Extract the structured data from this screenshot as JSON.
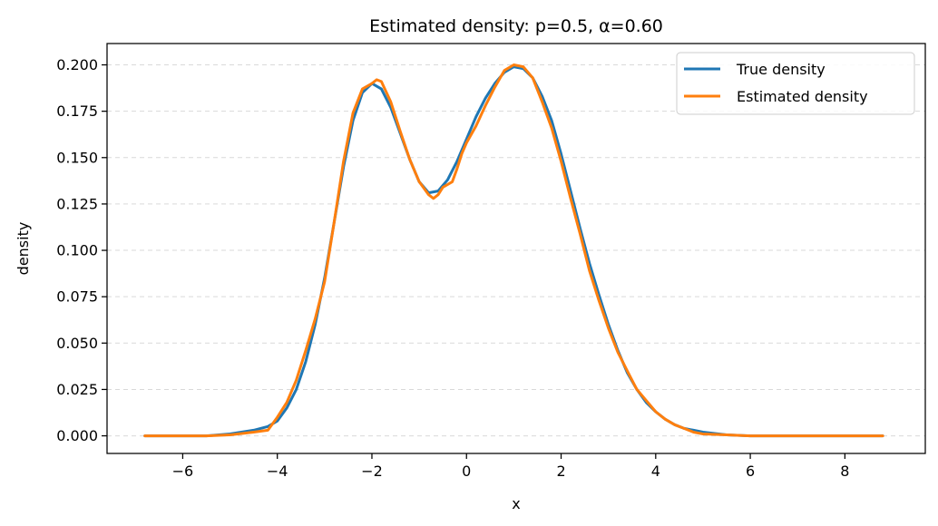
{
  "chart_data": {
    "type": "line",
    "title": "Estimated density: p=0.5, α=0.60",
    "xlabel": "x",
    "ylabel": "density",
    "xlim": [
      -7.6,
      9.7
    ],
    "ylim": [
      -0.0095,
      0.2115
    ],
    "xticks": [
      -6,
      -4,
      -2,
      0,
      2,
      4,
      6,
      8
    ],
    "xtick_labels": [
      "−6",
      "−4",
      "−2",
      "0",
      "2",
      "4",
      "6",
      "8"
    ],
    "yticks": [
      0.0,
      0.025,
      0.05,
      0.075,
      0.1,
      0.125,
      0.15,
      0.175,
      0.2
    ],
    "ytick_labels": [
      "0.000",
      "0.025",
      "0.050",
      "0.075",
      "0.100",
      "0.125",
      "0.150",
      "0.175",
      "0.200"
    ],
    "grid": "y-dashed",
    "legend_position": "top-right",
    "series": [
      {
        "name": "True density",
        "color": "#1f77b4",
        "x": [
          -6.8,
          -6.0,
          -5.5,
          -5.0,
          -4.5,
          -4.2,
          -4.0,
          -3.8,
          -3.6,
          -3.4,
          -3.2,
          -3.0,
          -2.8,
          -2.6,
          -2.4,
          -2.2,
          -2.0,
          -1.8,
          -1.6,
          -1.4,
          -1.2,
          -1.0,
          -0.8,
          -0.6,
          -0.4,
          -0.2,
          0.0,
          0.2,
          0.4,
          0.6,
          0.8,
          1.0,
          1.2,
          1.4,
          1.6,
          1.8,
          2.0,
          2.2,
          2.4,
          2.6,
          2.8,
          3.0,
          3.2,
          3.4,
          3.6,
          3.8,
          4.0,
          4.2,
          4.4,
          4.6,
          4.8,
          5.0,
          5.5,
          6.0,
          7.0,
          8.0,
          8.8
        ],
        "y": [
          0.0,
          0.0,
          0.0,
          0.001,
          0.003,
          0.005,
          0.008,
          0.015,
          0.025,
          0.04,
          0.06,
          0.085,
          0.115,
          0.145,
          0.17,
          0.185,
          0.19,
          0.187,
          0.177,
          0.163,
          0.149,
          0.137,
          0.131,
          0.132,
          0.138,
          0.148,
          0.16,
          0.172,
          0.182,
          0.19,
          0.196,
          0.199,
          0.198,
          0.193,
          0.183,
          0.17,
          0.152,
          0.132,
          0.112,
          0.093,
          0.076,
          0.06,
          0.046,
          0.034,
          0.025,
          0.018,
          0.013,
          0.009,
          0.006,
          0.004,
          0.003,
          0.002,
          0.0005,
          0.0,
          0.0,
          0.0,
          0.0
        ]
      },
      {
        "name": "Estimated density",
        "color": "#ff7f0e",
        "x": [
          -6.8,
          -6.0,
          -5.5,
          -5.0,
          -4.5,
          -4.2,
          -4.0,
          -3.8,
          -3.6,
          -3.4,
          -3.2,
          -3.0,
          -2.8,
          -2.6,
          -2.4,
          -2.2,
          -2.0,
          -1.9,
          -1.8,
          -1.6,
          -1.4,
          -1.2,
          -1.0,
          -0.8,
          -0.7,
          -0.6,
          -0.5,
          -0.3,
          -0.2,
          -0.1,
          0.0,
          0.2,
          0.4,
          0.6,
          0.8,
          1.0,
          1.2,
          1.4,
          1.6,
          1.8,
          2.0,
          2.2,
          2.4,
          2.6,
          2.8,
          3.0,
          3.2,
          3.4,
          3.6,
          3.8,
          4.0,
          4.2,
          4.4,
          4.6,
          4.8,
          5.0,
          5.5,
          6.0,
          7.0,
          8.0,
          8.8
        ],
        "y": [
          0.0,
          0.0,
          0.0,
          0.0005,
          0.002,
          0.003,
          0.01,
          0.018,
          0.03,
          0.046,
          0.063,
          0.083,
          0.115,
          0.148,
          0.174,
          0.187,
          0.19,
          0.192,
          0.191,
          0.18,
          0.164,
          0.149,
          0.137,
          0.13,
          0.128,
          0.13,
          0.134,
          0.137,
          0.144,
          0.152,
          0.158,
          0.167,
          0.178,
          0.188,
          0.197,
          0.2,
          0.199,
          0.193,
          0.18,
          0.166,
          0.148,
          0.128,
          0.109,
          0.089,
          0.073,
          0.058,
          0.045,
          0.035,
          0.025,
          0.019,
          0.013,
          0.009,
          0.006,
          0.004,
          0.002,
          0.001,
          0.0005,
          0.0,
          0.0,
          0.0,
          0.0
        ]
      }
    ]
  }
}
